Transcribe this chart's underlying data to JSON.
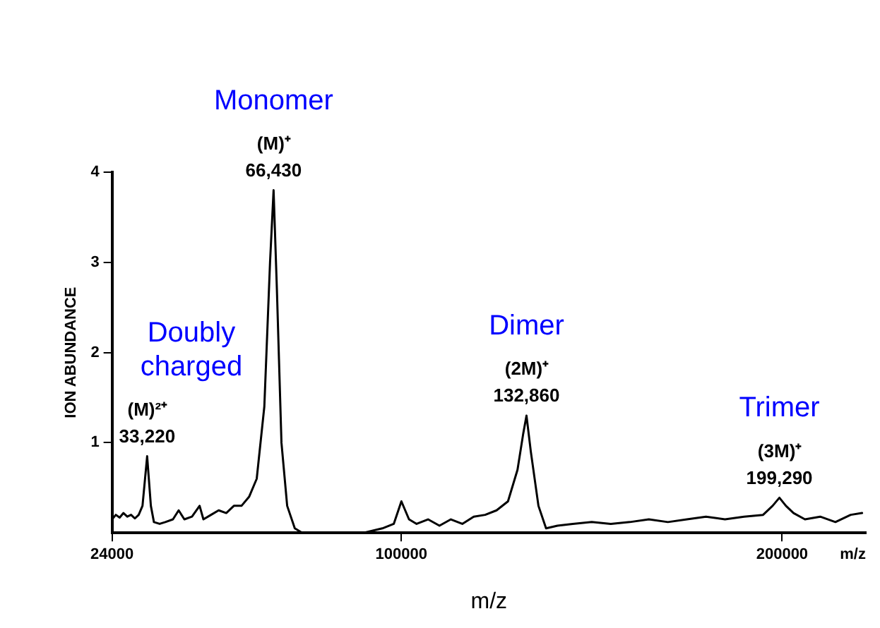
{
  "chart_data": {
    "type": "line",
    "xlabel": "m/z",
    "ylabel": "ION ABUNDANCE",
    "x": [
      24000,
      25000,
      26000,
      27000,
      28000,
      29000,
      30000,
      31000,
      32000,
      33220,
      34200,
      35000,
      36500,
      38000,
      40000,
      41500,
      43000,
      45000,
      47000,
      48000,
      50000,
      52000,
      54000,
      56000,
      58000,
      60000,
      62000,
      64000,
      65500,
      66430,
      67300,
      68500,
      70000,
      72000,
      74000,
      80000,
      85000,
      90000,
      95000,
      98000,
      100000,
      102000,
      104000,
      107000,
      110000,
      113000,
      116000,
      119000,
      122000,
      125000,
      128000,
      130500,
      132000,
      132860,
      134000,
      136000,
      138000,
      141000,
      145000,
      150000,
      155000,
      160000,
      165000,
      170000,
      175000,
      180000,
      185000,
      190000,
      195000,
      197500,
      199290,
      201000,
      203000,
      206000,
      210000,
      214000,
      218000,
      221000
    ],
    "series": [
      {
        "color": "#000000",
        "values": [
          0.15,
          0.2,
          0.17,
          0.22,
          0.18,
          0.2,
          0.16,
          0.2,
          0.3,
          0.85,
          0.3,
          0.12,
          0.1,
          0.12,
          0.15,
          0.25,
          0.15,
          0.18,
          0.3,
          0.15,
          0.2,
          0.25,
          0.22,
          0.3,
          0.3,
          0.4,
          0.6,
          1.4,
          3.0,
          3.8,
          2.7,
          1.0,
          0.3,
          0.05,
          0,
          0,
          0,
          0,
          0.05,
          0.1,
          0.35,
          0.15,
          0.1,
          0.15,
          0.08,
          0.15,
          0.1,
          0.18,
          0.2,
          0.25,
          0.35,
          0.7,
          1.1,
          1.3,
          0.9,
          0.3,
          0.05,
          0.08,
          0.1,
          0.12,
          0.1,
          0.12,
          0.15,
          0.12,
          0.15,
          0.18,
          0.15,
          0.18,
          0.2,
          0.3,
          0.39,
          0.3,
          0.22,
          0.15,
          0.18,
          0.12,
          0.2,
          0.22
        ]
      }
    ],
    "xlim": [
      24000,
      222000
    ],
    "xticks": [
      24000,
      100000,
      200000
    ],
    "ylim": [
      0,
      4
    ],
    "yticks": [
      1,
      2,
      3,
      4
    ],
    "grid": false,
    "legend": false,
    "marker": "none",
    "line_style": "solid",
    "annotations": [
      {
        "text": "(M)²⁺\n33,220",
        "x": 33220,
        "y": 0.85
      },
      {
        "text": "(M)⁺\n66,430",
        "x": 66430,
        "y": 3.8
      },
      {
        "text": "(2M)⁺\n132,860",
        "x": 132860,
        "y": 1.3
      },
      {
        "text": "(3M)⁺\n199,290",
        "x": 199290,
        "y": 0.39
      },
      "Doubly\ncharged",
      "Monomer",
      "Dimer",
      "Trimer",
      "m/z"
    ]
  }
}
